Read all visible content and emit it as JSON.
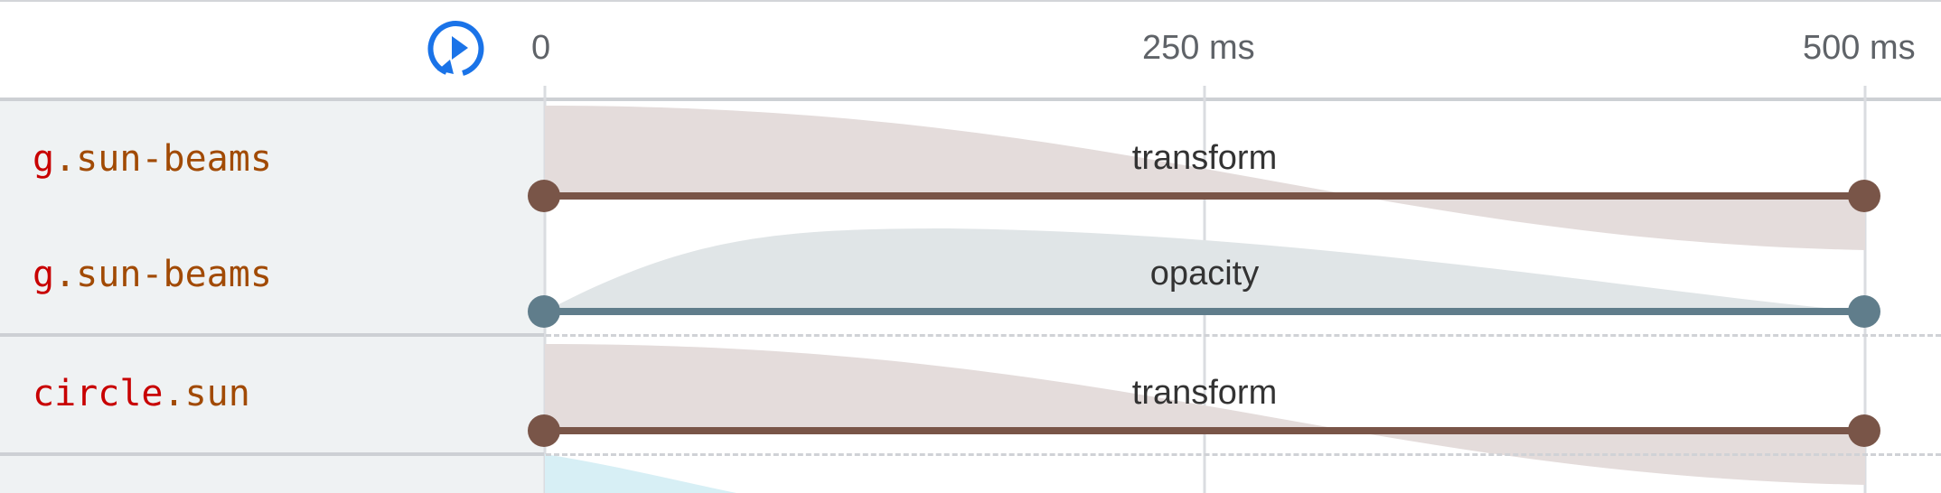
{
  "header": {
    "replay_icon": "replay-icon",
    "ticks": [
      "0",
      "250 ms",
      "500 ms"
    ]
  },
  "rows": [
    {
      "tag": "g",
      "cls": ".sun-beams",
      "property": "transform",
      "color": "#795548",
      "fill": "#e4dcdb"
    },
    {
      "tag": "g",
      "cls": ".sun-beams",
      "property": "opacity",
      "color": "#607d8b",
      "fill": "#e0e5e7"
    },
    {
      "tag": "circle",
      "cls": ".sun",
      "property": "transform",
      "color": "#795548",
      "fill": "#e4dcdb"
    }
  ],
  "partial_row_fill": "#d7eff5",
  "accent": "#1a73e8"
}
